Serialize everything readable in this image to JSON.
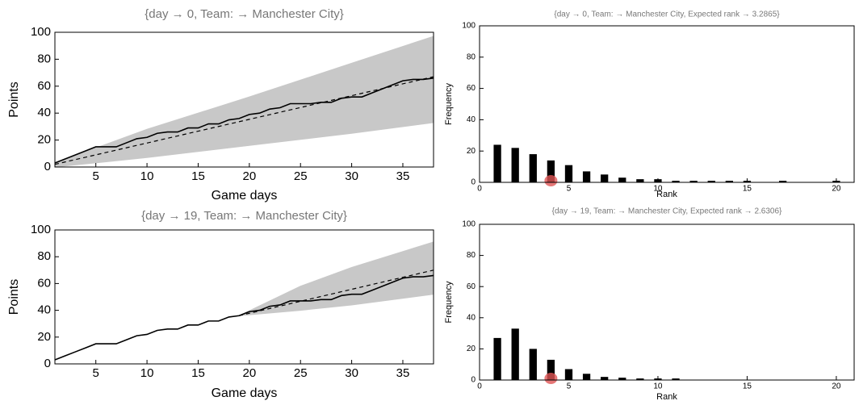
{
  "chart_data": [
    {
      "type": "line",
      "title": "{day → 0, Team: → Manchester City}",
      "x_label": "Game days",
      "y_label": "Points",
      "xlim": [
        1,
        38
      ],
      "xticks": [
        5,
        10,
        15,
        20,
        25,
        30,
        35
      ],
      "ylim": [
        0,
        100
      ],
      "yticks": [
        0,
        20,
        40,
        60,
        80,
        100
      ],
      "band": {
        "color": "#c8c8c8",
        "x": [
          1,
          10,
          20,
          30,
          38
        ],
        "lower": [
          0,
          7,
          16,
          25,
          33
        ],
        "upper": [
          3,
          28,
          52,
          77,
          97
        ]
      },
      "series": [
        {
          "color": "#000000",
          "dash": false,
          "x": [
            1,
            2,
            3,
            4,
            5,
            6,
            7,
            8,
            9,
            10,
            11,
            12,
            13,
            14,
            15,
            16,
            17,
            18,
            19,
            20,
            21,
            22,
            23,
            24,
            25,
            26,
            27,
            28,
            29,
            30,
            31,
            32,
            33,
            34,
            35,
            36,
            37,
            38
          ],
          "values": [
            3,
            6,
            9,
            12,
            15,
            15,
            15,
            18,
            21,
            22,
            25,
            26,
            26,
            29,
            29,
            32,
            32,
            35,
            36,
            39,
            40,
            43,
            44,
            47,
            47,
            47,
            48,
            48,
            51,
            52,
            52,
            55,
            58,
            61,
            64,
            65,
            65,
            66
          ]
        },
        {
          "color": "#000000",
          "dash": true,
          "x": [
            1,
            38
          ],
          "values": [
            2,
            67
          ]
        }
      ]
    },
    {
      "type": "bar",
      "title": "{day → 0, Team: → Manchester City,   Expected rank → 3.2865}",
      "x_label": "Rank",
      "y_label": "Frequency",
      "xlim": [
        0,
        21
      ],
      "xticks": [
        0,
        5,
        10,
        15,
        20
      ],
      "ylim": [
        0,
        100
      ],
      "yticks": [
        0,
        20,
        40,
        60,
        80,
        100
      ],
      "color": "#000000",
      "marker_x": 4,
      "marker_color": "#e05555",
      "categories": [
        1,
        2,
        3,
        4,
        5,
        6,
        7,
        8,
        9,
        10,
        11,
        12,
        13,
        14,
        15,
        16,
        17,
        18,
        19,
        20
      ],
      "values": [
        24,
        22,
        18,
        14,
        11,
        7,
        5,
        3,
        2,
        2,
        1,
        1,
        1,
        1,
        1,
        0,
        1,
        0,
        0,
        1
      ]
    },
    {
      "type": "line",
      "title": "{day → 19, Team: → Manchester City}",
      "x_label": "Game days",
      "y_label": "Points",
      "xlim": [
        1,
        38
      ],
      "xticks": [
        5,
        10,
        15,
        20,
        25,
        30,
        35
      ],
      "ylim": [
        0,
        100
      ],
      "yticks": [
        0,
        20,
        40,
        60,
        80,
        100
      ],
      "band": {
        "color": "#c8c8c8",
        "x": [
          19,
          25,
          30,
          38
        ],
        "lower": [
          36,
          40,
          44,
          52
        ],
        "upper": [
          36,
          58,
          72,
          91
        ]
      },
      "series": [
        {
          "color": "#000000",
          "dash": false,
          "x": [
            1,
            2,
            3,
            4,
            5,
            6,
            7,
            8,
            9,
            10,
            11,
            12,
            13,
            14,
            15,
            16,
            17,
            18,
            19,
            20,
            21,
            22,
            23,
            24,
            25,
            26,
            27,
            28,
            29,
            30,
            31,
            32,
            33,
            34,
            35,
            36,
            37,
            38
          ],
          "values": [
            3,
            6,
            9,
            12,
            15,
            15,
            15,
            18,
            21,
            22,
            25,
            26,
            26,
            29,
            29,
            32,
            32,
            35,
            36,
            39,
            40,
            43,
            44,
            47,
            47,
            47,
            48,
            48,
            51,
            52,
            52,
            55,
            58,
            61,
            64,
            65,
            65,
            66
          ]
        },
        {
          "color": "#000000",
          "dash": true,
          "x": [
            19,
            38
          ],
          "values": [
            36,
            70
          ]
        }
      ]
    },
    {
      "type": "bar",
      "title": "{day → 19, Team: → Manchester City,   Expected rank → 2.6306}",
      "x_label": "Rank",
      "y_label": "Frequency",
      "xlim": [
        0,
        21
      ],
      "xticks": [
        0,
        5,
        10,
        15,
        20
      ],
      "ylim": [
        0,
        100
      ],
      "yticks": [
        0,
        20,
        40,
        60,
        80,
        100
      ],
      "color": "#000000",
      "marker_x": 4,
      "marker_color": "#e05555",
      "categories": [
        1,
        2,
        3,
        4,
        5,
        6,
        7,
        8,
        9,
        10,
        11
      ],
      "values": [
        27,
        33,
        20,
        13,
        7,
        4,
        2,
        1.5,
        1,
        1,
        1
      ]
    }
  ]
}
